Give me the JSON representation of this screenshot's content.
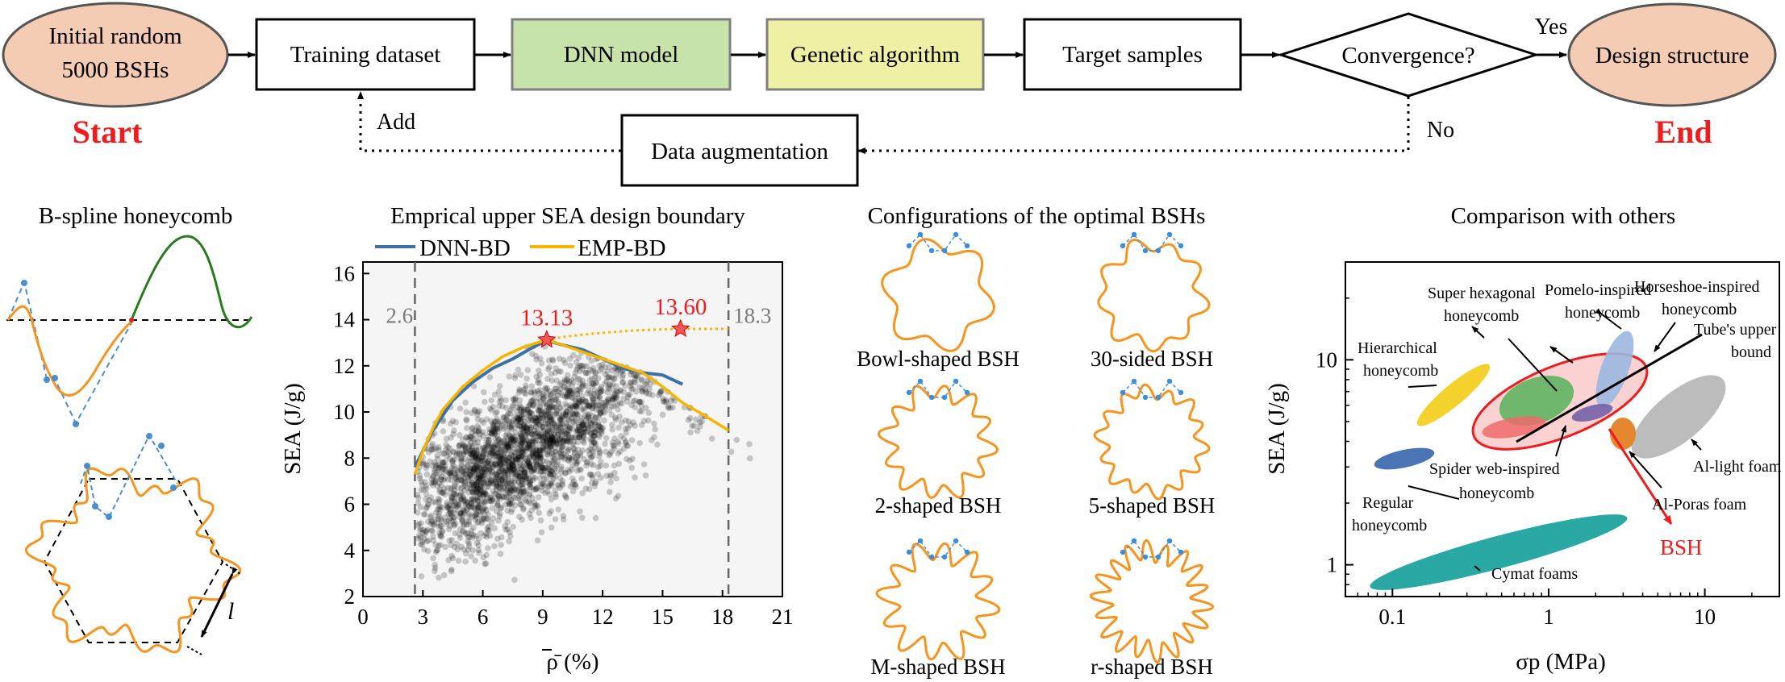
{
  "flow": {
    "start_node": [
      "Initial random",
      "5000 BSHs"
    ],
    "start_label": "Start",
    "training": "Training dataset",
    "dnn": "DNN model",
    "ga": "Genetic algorithm",
    "target": "Target samples",
    "convergence": "Convergence?",
    "yes": "Yes",
    "end_node": "Design structure",
    "end_label": "End",
    "augmentation": "Data augmentation",
    "add": "Add",
    "no": "No",
    "colors": {
      "oval": "#f4cbb3",
      "dnn": "#c7e3a9",
      "ga": "#eef0a3",
      "red": "#ee1c1c"
    }
  },
  "panel_bspline": {
    "title": "B-spline honeycomb",
    "l_label": "l"
  },
  "panel_chart": {
    "title": "Emprical upper SEA design boundary",
    "legend": [
      {
        "name": "DNN-BD",
        "color": "#3d6fa8"
      },
      {
        "name": "EMP-BD",
        "color": "#f7b500"
      }
    ],
    "markers": [
      {
        "x": 9.2,
        "y": 13.13,
        "label": "13.13"
      },
      {
        "x": 15.9,
        "y": 13.6,
        "label": "13.60"
      }
    ],
    "vlines": [
      {
        "x": 2.6,
        "label": "2.6"
      },
      {
        "x": 18.3,
        "label": "18.3"
      }
    ]
  },
  "chart_data": {
    "type": "scatter",
    "xlabel": "ρ̄ (%)",
    "ylabel": "SEA (J/g)",
    "xlim": [
      0,
      21
    ],
    "ylim": [
      2,
      16.5
    ],
    "xticks": [
      "0",
      "3",
      "6",
      "9",
      "12",
      "15",
      "18",
      "21"
    ],
    "yticks": [
      "2",
      "4",
      "6",
      "8",
      "10",
      "12",
      "14",
      "16"
    ],
    "series": [
      {
        "name": "DNN-BD",
        "x": [
          2.6,
          3.5,
          4.5,
          5.5,
          6.5,
          7.5,
          8.5,
          9.2,
          10,
          11,
          12,
          13,
          14,
          15,
          16
        ],
        "y": [
          7.6,
          9.2,
          10.5,
          11.3,
          11.9,
          12.3,
          12.8,
          13.1,
          12.9,
          12.7,
          12.3,
          11.9,
          11.7,
          11.6,
          11.2
        ]
      },
      {
        "name": "EMP-BD",
        "x": [
          2.6,
          3,
          3.5,
          4,
          5,
          6,
          7,
          8,
          9.2,
          10,
          11,
          12,
          13,
          14,
          15,
          16,
          17,
          18.3
        ],
        "y": [
          7.3,
          8.3,
          9.3,
          10.1,
          11.1,
          11.8,
          12.4,
          12.8,
          13.13,
          12.9,
          12.6,
          12.3,
          12,
          11.7,
          11.1,
          10.4,
          9.9,
          9.2
        ]
      },
      {
        "name": "EMP-BD extension",
        "x": [
          9.2,
          10,
          11,
          12,
          13,
          14,
          15,
          15.9,
          17,
          18.3
        ],
        "y": [
          13.13,
          13.25,
          13.35,
          13.43,
          13.5,
          13.55,
          13.58,
          13.6,
          13.6,
          13.6
        ]
      }
    ]
  },
  "panel_configs": {
    "title": "Configurations of the optimal BSHs",
    "items": [
      {
        "label": "Bowl-shaped BSH",
        "lobes": 6,
        "amp": 0.1
      },
      {
        "label": "30-sided BSH",
        "lobes": 9,
        "amp": 0.12
      },
      {
        "label": "2-shaped BSH",
        "lobes": 12,
        "amp": 0.16
      },
      {
        "label": "5-shaped BSH",
        "lobes": 14,
        "amp": 0.12
      },
      {
        "label": "M-shaped BSH",
        "lobes": 12,
        "amp": 0.2
      },
      {
        "label": "r-shaped BSH",
        "lobes": 18,
        "amp": 0.2
      }
    ]
  },
  "panel_compare": {
    "title": "Comparison with others",
    "xlabel": "σp (MPa)",
    "ylabel": "SEA (J/g)",
    "xticks": [
      "0.1",
      "1",
      "10"
    ],
    "yticks": [
      "1",
      "10"
    ],
    "labels": {
      "super_hex": [
        "Super hexagonal",
        "honeycomb"
      ],
      "pomelo": [
        "Pomelo-inspired",
        "honeycomb"
      ],
      "horseshoe": [
        "Horseshoe-inspired",
        "honeycomb"
      ],
      "tube": [
        "Tube's upper",
        "bound"
      ],
      "hierarchical": [
        "Hierarchical",
        "honeycomb"
      ],
      "spider": [
        "Spider web-inspired",
        "honeycomb"
      ],
      "al_light": "Al-light foam",
      "al_poras": "Al-Poras foam",
      "regular": [
        "Regular",
        "honeycomb"
      ],
      "cymat": "Cymat foams",
      "bsh": "BSH"
    }
  }
}
